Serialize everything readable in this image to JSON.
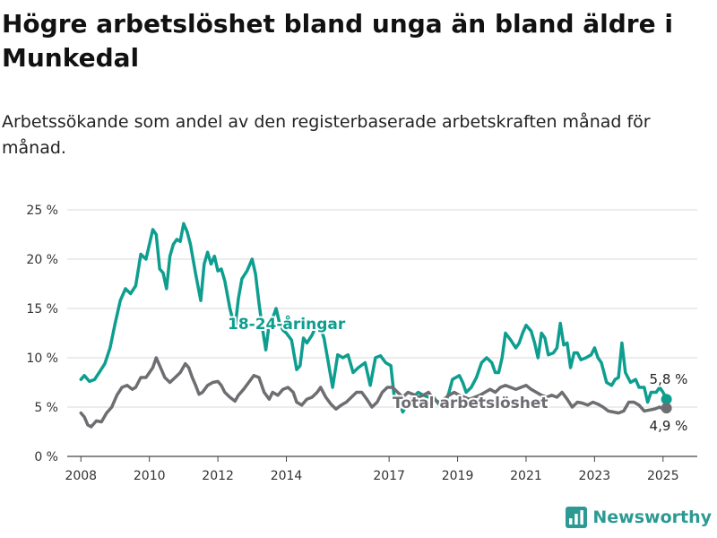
{
  "title": "Högre arbetslöshet bland unga än bland äldre i Munkedal",
  "subtitle": "Arbetssökande som andel av den registerbaserade arbetskraften månad för månad.",
  "brand": {
    "name": "Newsworthy",
    "icon": "bar-chart-logo-icon",
    "color": "#2c9a92"
  },
  "chart_data": {
    "type": "line",
    "title": "Högre arbetslöshet bland unga än bland äldre i Munkedal",
    "subtitle": "Arbetssökande som andel av den registerbaserade arbetskraften månad för månad.",
    "xlabel": "",
    "ylabel": "",
    "xlim": [
      2007.6,
      2026.0
    ],
    "ylim": [
      0,
      25
    ],
    "grid": true,
    "legend": "direct labels on lines",
    "x_ticks": [
      2008,
      2010,
      2012,
      2014,
      2017,
      2019,
      2021,
      2023,
      2025
    ],
    "x_tick_labels": [
      "2008",
      "2010",
      "2012",
      "2014",
      "2017",
      "2019",
      "2021",
      "2023",
      "2025"
    ],
    "y_ticks": [
      0,
      5,
      10,
      15,
      20,
      25
    ],
    "y_tick_labels": [
      "0 %",
      "5 %",
      "10 %",
      "15 %",
      "20 %",
      "25 %"
    ],
    "series": [
      {
        "name": "18-24-åringar",
        "color": "#0e9e8f",
        "end_label": "5,8 %",
        "end_value": 5.8,
        "points": [
          [
            2008.0,
            7.8
          ],
          [
            2008.1,
            8.2
          ],
          [
            2008.25,
            7.6
          ],
          [
            2008.4,
            7.8
          ],
          [
            2008.55,
            8.6
          ],
          [
            2008.7,
            9.4
          ],
          [
            2008.85,
            11.0
          ],
          [
            2009.0,
            13.5
          ],
          [
            2009.15,
            15.8
          ],
          [
            2009.3,
            17.0
          ],
          [
            2009.45,
            16.5
          ],
          [
            2009.6,
            17.3
          ],
          [
            2009.75,
            20.5
          ],
          [
            2009.9,
            20.0
          ],
          [
            2010.0,
            21.5
          ],
          [
            2010.1,
            23.0
          ],
          [
            2010.2,
            22.5
          ],
          [
            2010.3,
            19.0
          ],
          [
            2010.4,
            18.6
          ],
          [
            2010.5,
            17.0
          ],
          [
            2010.6,
            20.3
          ],
          [
            2010.7,
            21.5
          ],
          [
            2010.8,
            22.0
          ],
          [
            2010.9,
            21.8
          ],
          [
            2011.0,
            23.6
          ],
          [
            2011.1,
            22.8
          ],
          [
            2011.2,
            21.5
          ],
          [
            2011.35,
            18.5
          ],
          [
            2011.5,
            15.8
          ],
          [
            2011.6,
            19.5
          ],
          [
            2011.7,
            20.7
          ],
          [
            2011.8,
            19.5
          ],
          [
            2011.9,
            20.3
          ],
          [
            2012.0,
            18.8
          ],
          [
            2012.1,
            19.0
          ],
          [
            2012.2,
            17.8
          ],
          [
            2012.35,
            15.0
          ],
          [
            2012.5,
            13.0
          ],
          [
            2012.6,
            16.0
          ],
          [
            2012.7,
            18.0
          ],
          [
            2012.85,
            18.8
          ],
          [
            2013.0,
            20.0
          ],
          [
            2013.1,
            18.5
          ],
          [
            2013.2,
            15.5
          ],
          [
            2013.3,
            13.0
          ],
          [
            2013.4,
            10.8
          ],
          [
            2013.5,
            13.5
          ],
          [
            2013.6,
            14.0
          ],
          [
            2013.7,
            15.0
          ],
          [
            2013.8,
            13.5
          ],
          [
            2013.9,
            12.8
          ],
          [
            2014.0,
            12.5
          ],
          [
            2014.15,
            11.8
          ],
          [
            2014.3,
            8.8
          ],
          [
            2014.4,
            9.2
          ],
          [
            2014.5,
            12.0
          ],
          [
            2014.6,
            11.5
          ],
          [
            2014.75,
            12.3
          ],
          [
            2014.9,
            13.5
          ],
          [
            2015.0,
            13.0
          ],
          [
            2015.1,
            12.0
          ],
          [
            2015.2,
            10.0
          ],
          [
            2015.35,
            7.0
          ],
          [
            2015.5,
            10.3
          ],
          [
            2015.65,
            10.0
          ],
          [
            2015.8,
            10.3
          ],
          [
            2015.95,
            8.5
          ],
          [
            2016.1,
            9.0
          ],
          [
            2016.3,
            9.5
          ],
          [
            2016.45,
            7.2
          ],
          [
            2016.6,
            10.0
          ],
          [
            2016.75,
            10.2
          ],
          [
            2016.9,
            9.5
          ],
          [
            2017.05,
            9.2
          ],
          [
            2017.15,
            6.0
          ],
          [
            2017.3,
            5.5
          ],
          [
            2017.4,
            4.5
          ],
          [
            2017.55,
            5.5
          ],
          [
            2017.7,
            6.0
          ],
          [
            2017.85,
            6.5
          ],
          [
            2018.0,
            6.2
          ],
          [
            2018.15,
            6.0
          ],
          [
            2018.3,
            6.0
          ],
          [
            2018.45,
            5.3
          ],
          [
            2018.6,
            5.0
          ],
          [
            2018.75,
            6.5
          ],
          [
            2018.85,
            7.8
          ],
          [
            2018.95,
            8.0
          ],
          [
            2019.05,
            8.2
          ],
          [
            2019.15,
            7.5
          ],
          [
            2019.25,
            6.5
          ],
          [
            2019.4,
            7.0
          ],
          [
            2019.55,
            8.0
          ],
          [
            2019.7,
            9.5
          ],
          [
            2019.85,
            10.0
          ],
          [
            2020.0,
            9.5
          ],
          [
            2020.1,
            8.5
          ],
          [
            2020.2,
            8.5
          ],
          [
            2020.3,
            10.0
          ],
          [
            2020.4,
            12.5
          ],
          [
            2020.55,
            11.8
          ],
          [
            2020.7,
            11.0
          ],
          [
            2020.8,
            11.5
          ],
          [
            2020.9,
            12.5
          ],
          [
            2021.0,
            13.3
          ],
          [
            2021.15,
            12.7
          ],
          [
            2021.25,
            11.5
          ],
          [
            2021.35,
            10.0
          ],
          [
            2021.45,
            12.5
          ],
          [
            2021.55,
            12.0
          ],
          [
            2021.65,
            10.3
          ],
          [
            2021.8,
            10.5
          ],
          [
            2021.9,
            11.0
          ],
          [
            2022.0,
            13.5
          ],
          [
            2022.1,
            11.3
          ],
          [
            2022.2,
            11.5
          ],
          [
            2022.3,
            9.0
          ],
          [
            2022.4,
            10.5
          ],
          [
            2022.5,
            10.5
          ],
          [
            2022.6,
            9.8
          ],
          [
            2022.75,
            10.0
          ],
          [
            2022.9,
            10.3
          ],
          [
            2023.0,
            11.0
          ],
          [
            2023.1,
            10.0
          ],
          [
            2023.2,
            9.5
          ],
          [
            2023.35,
            7.5
          ],
          [
            2023.5,
            7.2
          ],
          [
            2023.6,
            7.8
          ],
          [
            2023.7,
            8.0
          ],
          [
            2023.8,
            11.5
          ],
          [
            2023.9,
            8.5
          ],
          [
            2024.05,
            7.5
          ],
          [
            2024.2,
            7.8
          ],
          [
            2024.3,
            7.0
          ],
          [
            2024.45,
            7.0
          ],
          [
            2024.55,
            5.5
          ],
          [
            2024.65,
            6.5
          ],
          [
            2024.8,
            6.5
          ],
          [
            2024.9,
            7.0
          ],
          [
            2025.0,
            6.5
          ],
          [
            2025.1,
            5.8
          ]
        ]
      },
      {
        "name": "Total arbetslöshet",
        "color": "#6e6e72",
        "end_label": "4,9 %",
        "end_value": 4.9,
        "points": [
          [
            2008.0,
            4.4
          ],
          [
            2008.1,
            4.0
          ],
          [
            2008.2,
            3.2
          ],
          [
            2008.3,
            3.0
          ],
          [
            2008.45,
            3.6
          ],
          [
            2008.6,
            3.5
          ],
          [
            2008.75,
            4.4
          ],
          [
            2008.9,
            5.0
          ],
          [
            2009.05,
            6.2
          ],
          [
            2009.2,
            7.0
          ],
          [
            2009.35,
            7.2
          ],
          [
            2009.5,
            6.8
          ],
          [
            2009.6,
            7.0
          ],
          [
            2009.75,
            8.0
          ],
          [
            2009.9,
            8.0
          ],
          [
            2010.0,
            8.5
          ],
          [
            2010.1,
            9.0
          ],
          [
            2010.2,
            10.0
          ],
          [
            2010.3,
            9.2
          ],
          [
            2010.45,
            8.0
          ],
          [
            2010.6,
            7.5
          ],
          [
            2010.75,
            8.0
          ],
          [
            2010.9,
            8.5
          ],
          [
            2011.05,
            9.4
          ],
          [
            2011.15,
            9.0
          ],
          [
            2011.25,
            8.0
          ],
          [
            2011.35,
            7.2
          ],
          [
            2011.45,
            6.3
          ],
          [
            2011.55,
            6.5
          ],
          [
            2011.7,
            7.2
          ],
          [
            2011.85,
            7.5
          ],
          [
            2012.0,
            7.6
          ],
          [
            2012.1,
            7.2
          ],
          [
            2012.2,
            6.5
          ],
          [
            2012.35,
            6.0
          ],
          [
            2012.5,
            5.6
          ],
          [
            2012.6,
            6.2
          ],
          [
            2012.75,
            6.8
          ],
          [
            2012.9,
            7.5
          ],
          [
            2013.05,
            8.2
          ],
          [
            2013.2,
            8.0
          ],
          [
            2013.35,
            6.5
          ],
          [
            2013.5,
            5.8
          ],
          [
            2013.6,
            6.5
          ],
          [
            2013.75,
            6.2
          ],
          [
            2013.9,
            6.8
          ],
          [
            2014.05,
            7.0
          ],
          [
            2014.2,
            6.5
          ],
          [
            2014.3,
            5.5
          ],
          [
            2014.45,
            5.2
          ],
          [
            2014.6,
            5.8
          ],
          [
            2014.75,
            6.0
          ],
          [
            2014.9,
            6.5
          ],
          [
            2015.0,
            7.0
          ],
          [
            2015.15,
            6.0
          ],
          [
            2015.3,
            5.3
          ],
          [
            2015.45,
            4.8
          ],
          [
            2015.6,
            5.2
          ],
          [
            2015.75,
            5.5
          ],
          [
            2015.9,
            6.0
          ],
          [
            2016.05,
            6.5
          ],
          [
            2016.2,
            6.5
          ],
          [
            2016.35,
            5.8
          ],
          [
            2016.5,
            5.0
          ],
          [
            2016.65,
            5.5
          ],
          [
            2016.8,
            6.5
          ],
          [
            2016.95,
            7.0
          ],
          [
            2017.1,
            7.0
          ],
          [
            2017.25,
            6.5
          ],
          [
            2017.4,
            6.0
          ],
          [
            2017.55,
            6.5
          ],
          [
            2017.7,
            6.3
          ],
          [
            2017.85,
            6.0
          ],
          [
            2018.0,
            6.2
          ],
          [
            2018.15,
            6.5
          ],
          [
            2018.3,
            5.8
          ],
          [
            2018.45,
            5.5
          ],
          [
            2018.6,
            5.8
          ],
          [
            2018.75,
            6.2
          ],
          [
            2018.9,
            6.5
          ],
          [
            2019.05,
            6.2
          ],
          [
            2019.2,
            6.0
          ],
          [
            2019.35,
            5.8
          ],
          [
            2019.5,
            6.0
          ],
          [
            2019.65,
            6.2
          ],
          [
            2019.8,
            6.5
          ],
          [
            2019.95,
            6.8
          ],
          [
            2020.1,
            6.5
          ],
          [
            2020.25,
            7.0
          ],
          [
            2020.4,
            7.2
          ],
          [
            2020.55,
            7.0
          ],
          [
            2020.7,
            6.8
          ],
          [
            2020.85,
            7.0
          ],
          [
            2021.0,
            7.2
          ],
          [
            2021.15,
            6.8
          ],
          [
            2021.3,
            6.5
          ],
          [
            2021.45,
            6.2
          ],
          [
            2021.6,
            6.0
          ],
          [
            2021.75,
            6.2
          ],
          [
            2021.9,
            6.0
          ],
          [
            2022.05,
            6.5
          ],
          [
            2022.2,
            5.8
          ],
          [
            2022.35,
            5.0
          ],
          [
            2022.5,
            5.5
          ],
          [
            2022.65,
            5.4
          ],
          [
            2022.8,
            5.2
          ],
          [
            2022.95,
            5.5
          ],
          [
            2023.1,
            5.3
          ],
          [
            2023.25,
            5.0
          ],
          [
            2023.4,
            4.6
          ],
          [
            2023.55,
            4.5
          ],
          [
            2023.7,
            4.4
          ],
          [
            2023.85,
            4.6
          ],
          [
            2024.0,
            5.5
          ],
          [
            2024.15,
            5.5
          ],
          [
            2024.3,
            5.2
          ],
          [
            2024.45,
            4.6
          ],
          [
            2024.6,
            4.7
          ],
          [
            2024.75,
            4.8
          ],
          [
            2024.9,
            5.0
          ],
          [
            2025.0,
            4.8
          ],
          [
            2025.1,
            4.9
          ]
        ]
      }
    ]
  }
}
